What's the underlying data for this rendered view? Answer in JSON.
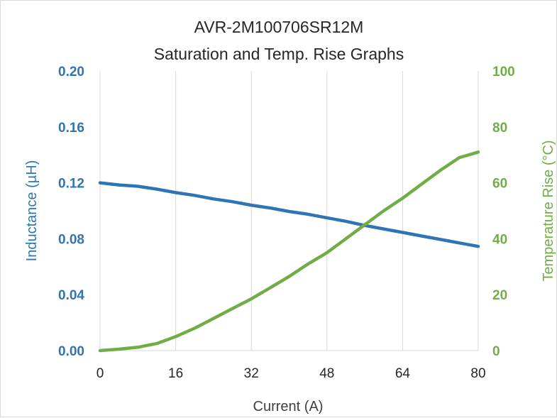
{
  "chart_data": {
    "type": "line",
    "title": "AVR-2M100706SR12M",
    "subtitle": "Saturation and Temp. Rise Graphs",
    "xlabel": "Current (A)",
    "ylabel": "Inductance (µH)",
    "y2label": "Temperature Rise (°C)",
    "xlim": [
      0,
      80
    ],
    "ylim": [
      0,
      0.2
    ],
    "y2lim": [
      0,
      100
    ],
    "x_ticks": [
      "0",
      "16",
      "32",
      "48",
      "64",
      "80"
    ],
    "y_ticks": [
      "0.00",
      "0.04",
      "0.08",
      "0.12",
      "0.16",
      "0.20"
    ],
    "y2_ticks": [
      "0",
      "20",
      "40",
      "60",
      "80",
      "100"
    ],
    "grid": {
      "vertical": true,
      "horizontal": false
    },
    "colors": {
      "inductance": "#2e75b6",
      "temperature": "#70ad47"
    },
    "series": [
      {
        "axis": "left",
        "color": "#2e75b6",
        "x": [
          0,
          4,
          8,
          12,
          16,
          20,
          24,
          28,
          32,
          36,
          40,
          44,
          48,
          52,
          56,
          60,
          64,
          68,
          72,
          76,
          80
        ],
        "y": [
          0.12,
          0.1185,
          0.1175,
          0.1155,
          0.113,
          0.111,
          0.1085,
          0.1065,
          0.104,
          0.102,
          0.0995,
          0.0975,
          0.095,
          0.0925,
          0.0895,
          0.087,
          0.0845,
          0.082,
          0.0795,
          0.077,
          0.0745
        ]
      },
      {
        "axis": "right",
        "color": "#70ad47",
        "x": [
          0,
          4,
          8,
          12,
          16,
          20,
          24,
          28,
          32,
          36,
          40,
          44,
          48,
          52,
          56,
          60,
          64,
          68,
          72,
          76,
          80
        ],
        "y": [
          0,
          0.5,
          1.2,
          2.5,
          5,
          8,
          11.5,
          15,
          18.5,
          22.5,
          26.5,
          31,
          35,
          40,
          45,
          50,
          54.5,
          59.5,
          64.5,
          69,
          71
        ]
      }
    ]
  }
}
